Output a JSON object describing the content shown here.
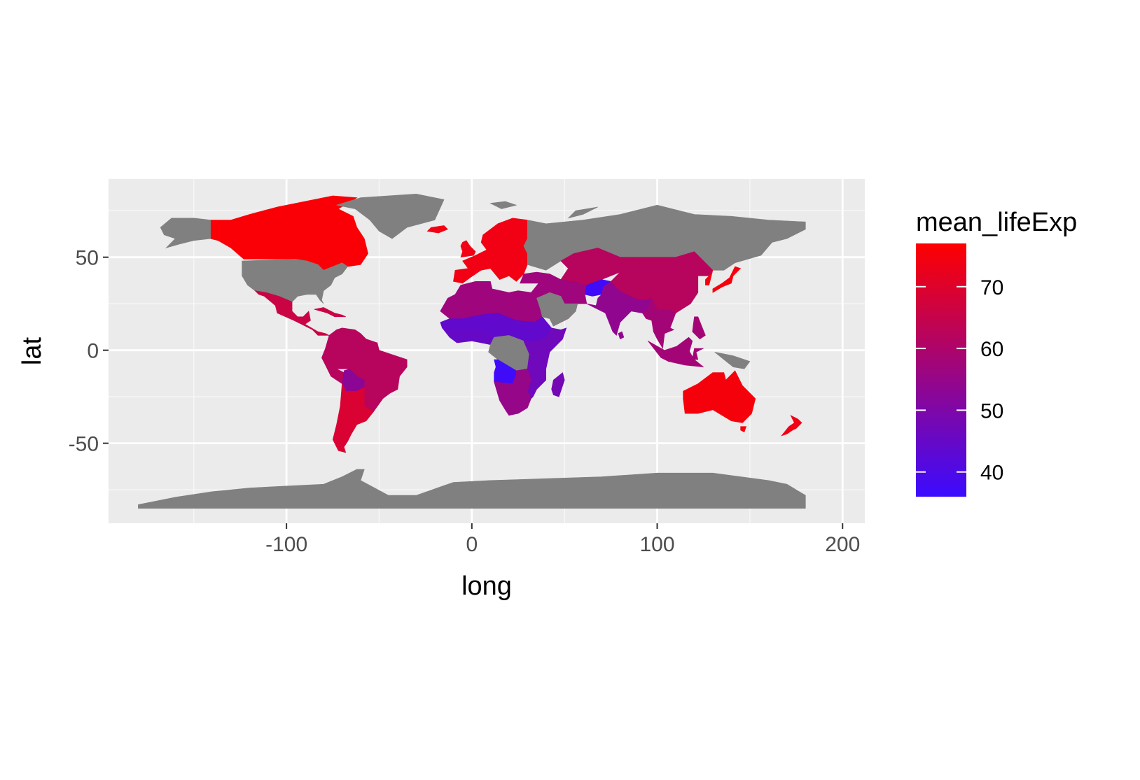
{
  "chart_data": {
    "type": "choropleth map",
    "xlabel": "long",
    "ylabel": "lat",
    "xlim": [
      -196,
      212
    ],
    "ylim": [
      -93,
      92
    ],
    "x_ticks": [
      -100,
      0,
      100,
      200
    ],
    "x_tick_labels": [
      "-100",
      "0",
      "100",
      "200"
    ],
    "y_ticks": [
      -50,
      0,
      50
    ],
    "y_tick_labels": [
      "-50",
      "0",
      "50"
    ],
    "grid": true,
    "na_color": "#808080",
    "legend": {
      "title": "mean_lifeExp",
      "position": "right",
      "low_color": "#3b0bff",
      "high_color": "#ff0000",
      "range": [
        36,
        77
      ],
      "breaks": [
        40,
        50,
        60,
        70
      ],
      "break_labels": [
        "40",
        "50",
        "60",
        "70"
      ]
    },
    "regions": [
      {
        "name": "Canada",
        "value": 76
      },
      {
        "name": "United States",
        "value": null
      },
      {
        "name": "Mexico",
        "value": 66
      },
      {
        "name": "Brazil",
        "value": 62
      },
      {
        "name": "Argentina",
        "value": 69
      },
      {
        "name": "Bolivia",
        "value": 53
      },
      {
        "name": "Europe",
        "value": 74
      },
      {
        "name": "Russia",
        "value": null
      },
      {
        "name": "Sahel",
        "value": 44
      },
      {
        "name": "West Africa",
        "value": 45
      },
      {
        "name": "North Africa",
        "value": 57
      },
      {
        "name": "East Africa",
        "value": 47
      },
      {
        "name": "Angola",
        "value": 37
      },
      {
        "name": "Southern Africa",
        "value": 55
      },
      {
        "name": "Madagascar",
        "value": 48
      },
      {
        "name": "Afghanistan",
        "value": 37
      },
      {
        "name": "India",
        "value": 54
      },
      {
        "name": "China",
        "value": 62
      },
      {
        "name": "Japan",
        "value": 75
      },
      {
        "name": "Southeast Asia",
        "value": 58
      },
      {
        "name": "Australia",
        "value": 75
      },
      {
        "name": "New Zealand",
        "value": 74
      },
      {
        "name": "Greenland",
        "value": null
      },
      {
        "name": "Antarctica",
        "value": null
      }
    ]
  }
}
